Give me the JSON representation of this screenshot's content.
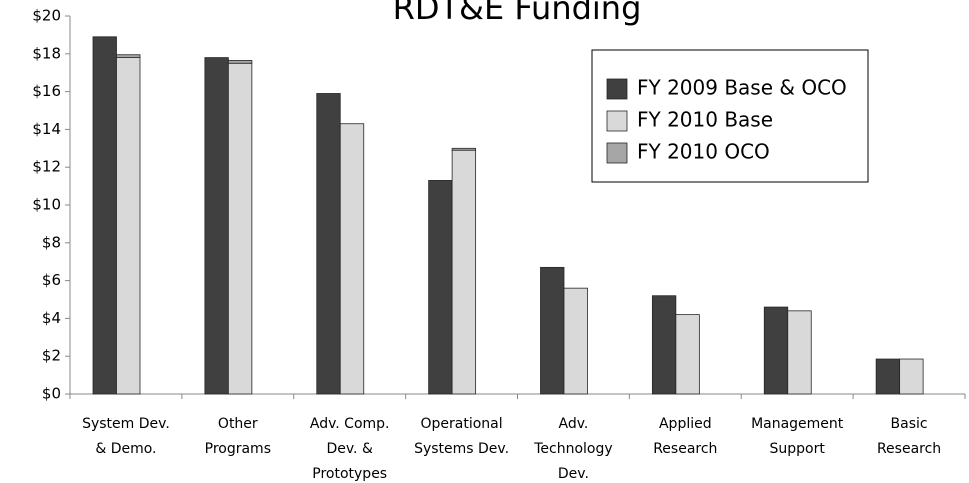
{
  "chart_data": {
    "type": "bar",
    "title": "RDT&E Funding",
    "categories": [
      "System Dev.\n& Demo.",
      "Other\nPrograms",
      "Adv. Comp.\nDev. &\nPrototypes",
      "Operational\nSystems Dev.",
      "Adv.\nTechnology\nDev.",
      "Applied\nResearch",
      "Management\nSupport",
      "Basic\nResearch"
    ],
    "series": [
      {
        "name": "FY 2009 Base & OCO",
        "color": "#404040",
        "values": [
          18.9,
          17.8,
          15.9,
          11.3,
          6.7,
          5.2,
          4.6,
          1.85
        ]
      },
      {
        "name": "FY 2010 Base",
        "color": "#d9d9d9",
        "values": [
          17.8,
          17.5,
          14.3,
          12.9,
          5.6,
          4.2,
          4.4,
          1.85
        ],
        "stack": "fy2010"
      },
      {
        "name": "FY 2010 OCO",
        "color": "#a6a6a6",
        "values": [
          0.15,
          0.15,
          0,
          0.1,
          0,
          0,
          0,
          0
        ],
        "stack": "fy2010"
      }
    ],
    "ylim": [
      0,
      20
    ],
    "yticks": [
      {
        "value": 0,
        "label": "$0"
      },
      {
        "value": 2,
        "label": "$2"
      },
      {
        "value": 4,
        "label": "$4"
      },
      {
        "value": 6,
        "label": "$6"
      },
      {
        "value": 8,
        "label": "$8"
      },
      {
        "value": 10,
        "label": "$10"
      },
      {
        "value": 12,
        "label": "$12"
      },
      {
        "value": 14,
        "label": "$14"
      },
      {
        "value": 16,
        "label": "$16"
      },
      {
        "value": 18,
        "label": "$18"
      },
      {
        "value": 20,
        "label": "$20"
      }
    ],
    "grid": false,
    "legend": "upper right"
  }
}
